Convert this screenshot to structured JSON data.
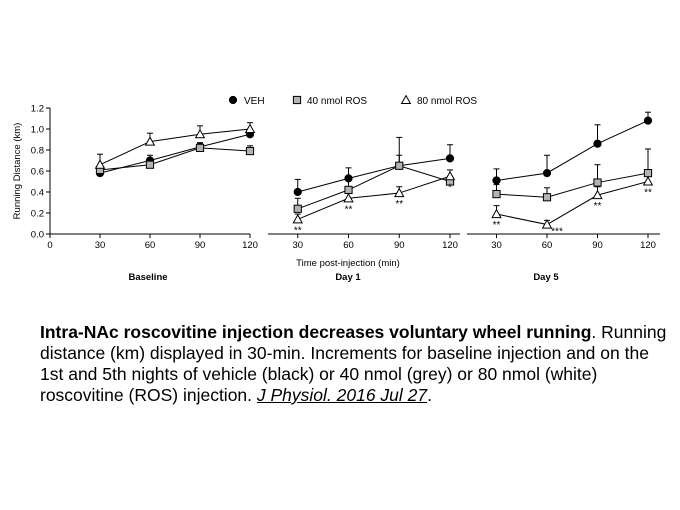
{
  "chart_data": {
    "type": "line",
    "legend": [
      {
        "name": "VEH",
        "marker": "circle",
        "fill": "#000000"
      },
      {
        "name": "40 nmol ROS",
        "marker": "square",
        "fill": "#b3b3b3"
      },
      {
        "name": "80 nmol ROS",
        "marker": "triangle",
        "fill": "#ffffff"
      }
    ],
    "legend_placement": "top",
    "ylabel": "Running Distance (km)",
    "xlabel": "Time post-injection (min)",
    "ylim": [
      0,
      1.2
    ],
    "yticks": [
      "0.0",
      "0.2",
      "0.4",
      "0.6",
      "0.8",
      "1.0",
      "1.2"
    ],
    "x_zero_label": "0",
    "grid": false,
    "panels": [
      {
        "label": "Baseline",
        "x": [
          30,
          60,
          90,
          120
        ],
        "xticks": [
          "30",
          "60",
          "90",
          "120"
        ],
        "series": [
          {
            "name": "VEH",
            "values": [
              0.58,
              0.7,
              0.83,
              0.95
            ],
            "err": [
              0.03,
              0.05,
              0.04,
              0.05
            ]
          },
          {
            "name": "40 nmol ROS",
            "values": [
              0.61,
              0.66,
              0.82,
              0.79
            ],
            "err": [
              0.04,
              0.04,
              0.04,
              0.05
            ]
          },
          {
            "name": "80 nmol ROS",
            "values": [
              0.66,
              0.88,
              0.95,
              1.0
            ],
            "err": [
              0.1,
              0.08,
              0.08,
              0.06
            ]
          }
        ],
        "annotations": []
      },
      {
        "label": "Day 1",
        "x": [
          30,
          60,
          90,
          120
        ],
        "xticks": [
          "30",
          "60",
          "90",
          "120"
        ],
        "series": [
          {
            "name": "VEH",
            "values": [
              0.4,
              0.53,
              0.65,
              0.72
            ],
            "err": [
              0.12,
              0.1,
              0.1,
              0.13
            ]
          },
          {
            "name": "40 nmol ROS",
            "values": [
              0.24,
              0.42,
              0.65,
              0.5
            ],
            "err": [
              0.1,
              0.1,
              0.27,
              0.05
            ]
          },
          {
            "name": "80 nmol ROS",
            "values": [
              0.14,
              0.34,
              0.39,
              0.55
            ],
            "err": [
              0.05,
              0.07,
              0.06,
              0.06
            ]
          }
        ],
        "annotations": [
          {
            "x": 30,
            "text": "**"
          },
          {
            "x": 60,
            "text": "**"
          },
          {
            "x": 90,
            "text": "**"
          },
          {
            "x": 120,
            "text": "*"
          }
        ]
      },
      {
        "label": "Day 5",
        "x": [
          30,
          60,
          90,
          120
        ],
        "xticks": [
          "30",
          "60",
          "90",
          "120"
        ],
        "series": [
          {
            "name": "VEH",
            "values": [
              0.51,
              0.58,
              0.86,
              1.08
            ],
            "err": [
              0.11,
              0.17,
              0.18,
              0.08
            ]
          },
          {
            "name": "40 nmol ROS",
            "values": [
              0.38,
              0.35,
              0.49,
              0.58
            ],
            "err": [
              0.09,
              0.09,
              0.17,
              0.23
            ]
          },
          {
            "name": "80 nmol ROS",
            "values": [
              0.19,
              0.09,
              0.37,
              0.5
            ],
            "err": [
              0.08,
              0.04,
              0.08,
              0.06
            ]
          }
        ],
        "annotations": [
          {
            "x": 30,
            "text": "**"
          },
          {
            "x": 60,
            "text": "***"
          },
          {
            "x": 90,
            "text": "**"
          },
          {
            "x": 120,
            "text": "**"
          }
        ]
      }
    ]
  },
  "caption": {
    "title": "Intra-NAc roscovitine injection decreases voluntary wheel running",
    "title_end": ".",
    "body": " Running distance (km) displayed in 30-min. Increments for baseline injection and on the 1st and 5th nights of vehicle (black) or 40 nmol (grey) or 80 nmol (white) roscovitine (ROS) injection. ",
    "citation": "J Physiol. 2016 Jul 27",
    "end": "."
  }
}
